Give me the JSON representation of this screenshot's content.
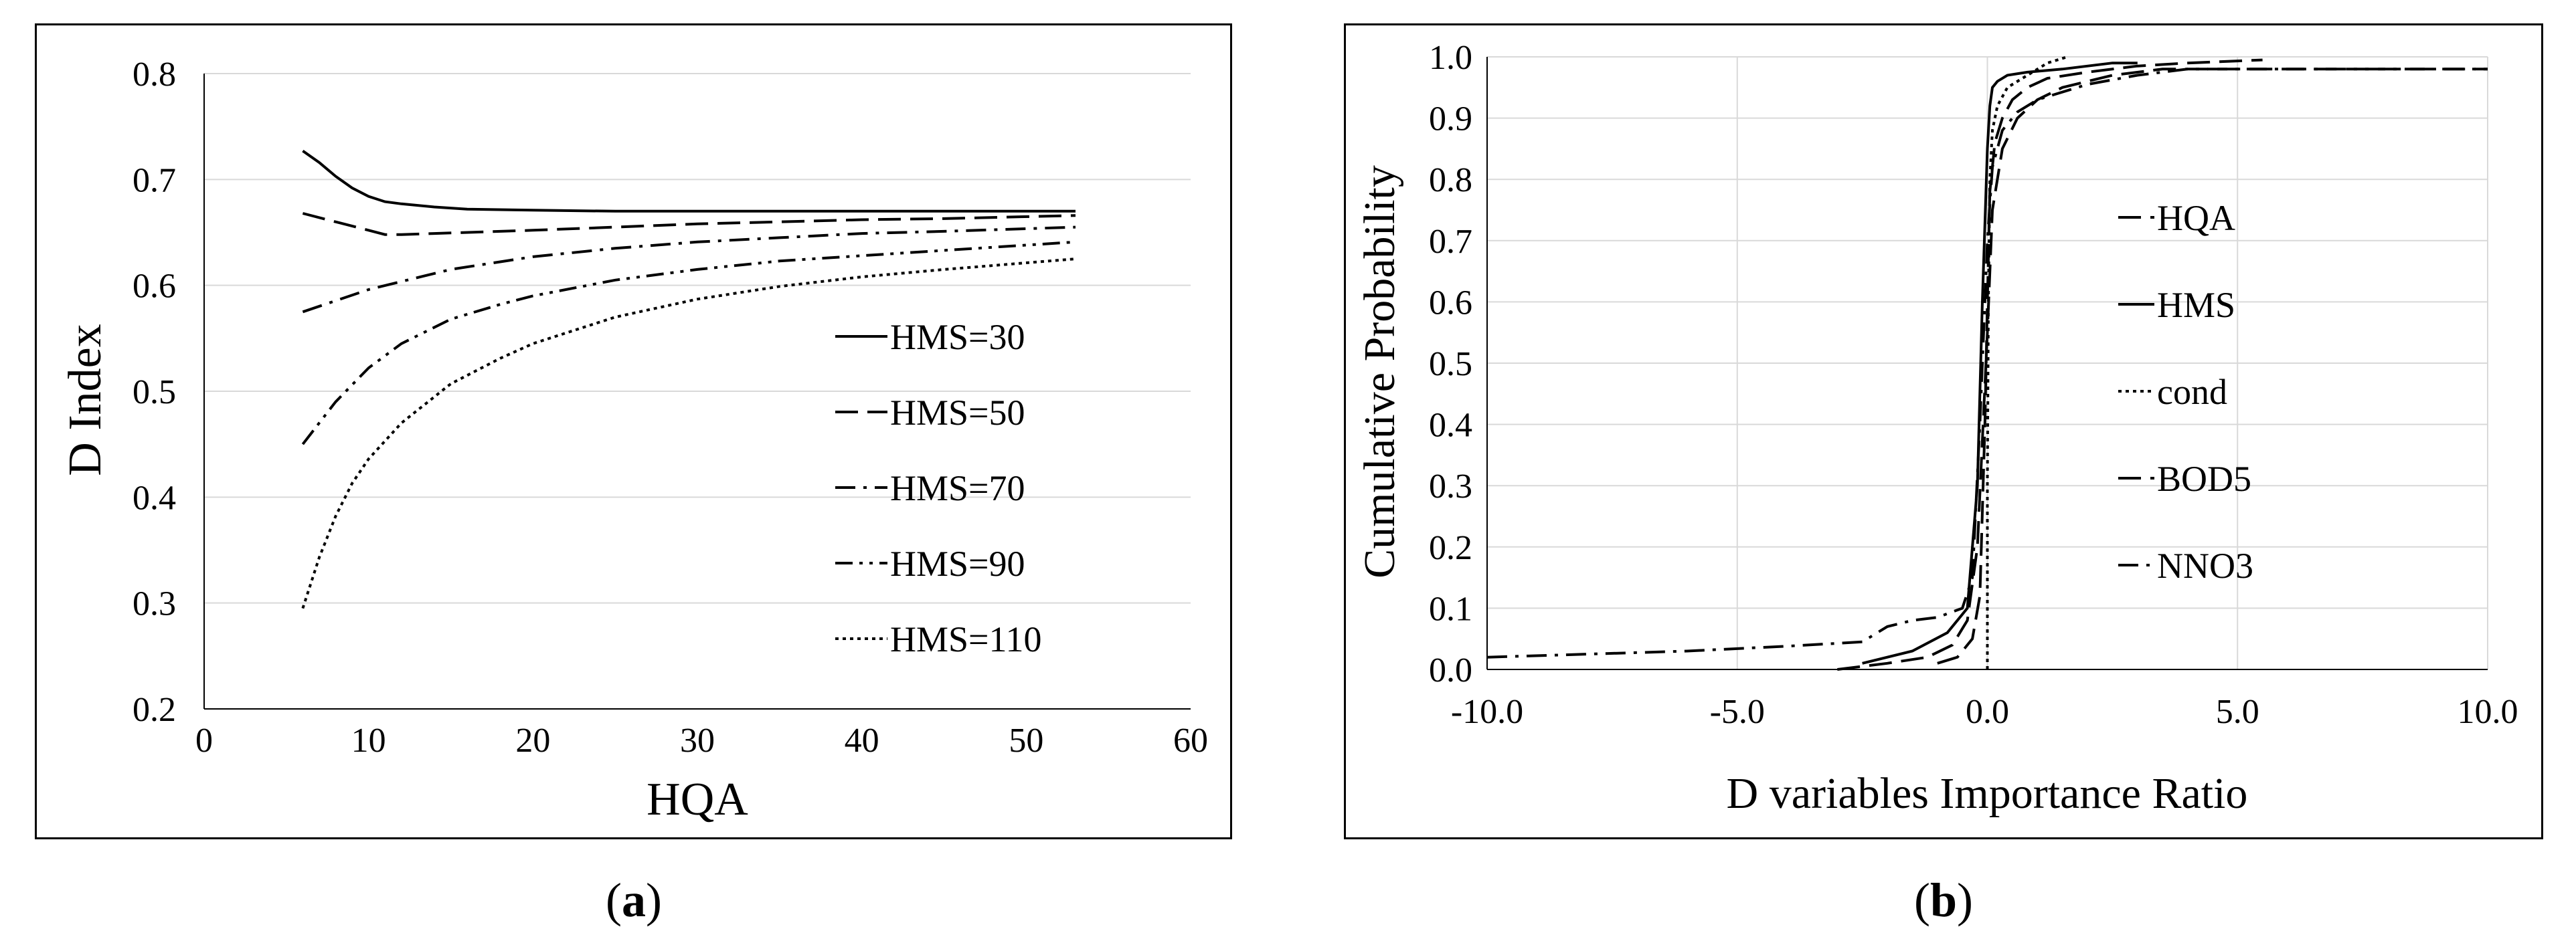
{
  "panels": {
    "a": {
      "caption_open": "(",
      "caption_letter": "a",
      "caption_close": ")"
    },
    "b": {
      "caption_open": "(",
      "caption_letter": "b",
      "caption_close": ")"
    }
  },
  "chart_data": [
    {
      "type": "line",
      "xlabel": "HQA",
      "ylabel": "D Index",
      "xlim": [
        0,
        60
      ],
      "ylim": [
        0.2,
        0.8
      ],
      "xticks": [
        "0",
        "10",
        "20",
        "30",
        "40",
        "50",
        "60"
      ],
      "yticks": [
        "0.2",
        "0.3",
        "0.4",
        "0.5",
        "0.6",
        "0.7",
        "0.8"
      ],
      "grid": "horizontal",
      "legend": "right",
      "series": [
        {
          "name": "HMS=30",
          "dash": "solid",
          "x": [
            6,
            7,
            8,
            9,
            10,
            11,
            12,
            14,
            16,
            20,
            25,
            30,
            40,
            53
          ],
          "y": [
            0.727,
            0.716,
            0.703,
            0.692,
            0.684,
            0.679,
            0.677,
            0.674,
            0.672,
            0.671,
            0.67,
            0.67,
            0.67,
            0.67
          ]
        },
        {
          "name": "HMS=50",
          "dash": "dash",
          "x": [
            6,
            8,
            10,
            11,
            12,
            14,
            20,
            25,
            30,
            35,
            40,
            45,
            53
          ],
          "y": [
            0.668,
            0.66,
            0.652,
            0.648,
            0.648,
            0.649,
            0.652,
            0.655,
            0.658,
            0.66,
            0.662,
            0.663,
            0.666
          ]
        },
        {
          "name": "HMS=70",
          "dash": "dashdot",
          "x": [
            6,
            10,
            15,
            20,
            25,
            30,
            35,
            40,
            45,
            53
          ],
          "y": [
            0.575,
            0.596,
            0.615,
            0.627,
            0.635,
            0.641,
            0.645,
            0.649,
            0.651,
            0.655
          ]
        },
        {
          "name": "HMS=90",
          "dash": "dashdotdot",
          "x": [
            6,
            8,
            10,
            12,
            15,
            18,
            20,
            25,
            30,
            35,
            40,
            45,
            53
          ],
          "y": [
            0.45,
            0.49,
            0.522,
            0.545,
            0.568,
            0.582,
            0.59,
            0.605,
            0.615,
            0.623,
            0.628,
            0.633,
            0.641
          ]
        },
        {
          "name": "HMS=110",
          "dash": "dot",
          "x": [
            6,
            7,
            8,
            9,
            10,
            12,
            15,
            18,
            20,
            25,
            30,
            35,
            40,
            45,
            53
          ],
          "y": [
            0.295,
            0.343,
            0.382,
            0.413,
            0.436,
            0.47,
            0.507,
            0.531,
            0.545,
            0.57,
            0.587,
            0.599,
            0.608,
            0.615,
            0.625
          ]
        }
      ]
    },
    {
      "type": "line",
      "xlabel": "D variables Importance Ratio",
      "ylabel": "Cumulative Probability",
      "xlim": [
        -10,
        10
      ],
      "ylim": [
        0,
        1
      ],
      "xticks": [
        "-10.0",
        "-5.0",
        "0.0",
        "5.0",
        "10.0"
      ],
      "yticks": [
        "0.0",
        "0.1",
        "0.2",
        "0.3",
        "0.4",
        "0.5",
        "0.6",
        "0.7",
        "0.8",
        "0.9",
        "1.0"
      ],
      "grid": "both",
      "legend": "right",
      "series": [
        {
          "name": "HQA",
          "dash": "dash",
          "x": [
            -1.0,
            -0.6,
            -0.3,
            -0.15,
            -0.05,
            0.0,
            0.05,
            0.15,
            0.3,
            0.5,
            0.8,
            1.2,
            2.0,
            3.0,
            4.0,
            5.5
          ],
          "y": [
            0.01,
            0.02,
            0.05,
            0.12,
            0.4,
            0.6,
            0.78,
            0.86,
            0.9,
            0.93,
            0.95,
            0.965,
            0.975,
            0.985,
            0.99,
            0.995
          ]
        },
        {
          "name": "HMS",
          "dash": "solid",
          "x": [
            -2.5,
            -1.5,
            -0.8,
            -0.4,
            -0.2,
            -0.1,
            0.0,
            0.05,
            0.1,
            0.2,
            0.4,
            0.8,
            1.5,
            2.5,
            3.0
          ],
          "y": [
            0.01,
            0.03,
            0.06,
            0.1,
            0.3,
            0.6,
            0.85,
            0.92,
            0.95,
            0.96,
            0.97,
            0.975,
            0.98,
            0.99,
            0.99
          ]
        },
        {
          "name": "cond",
          "dash": "dot",
          "x": [
            0.0,
            0.0,
            0.02,
            0.05,
            0.1,
            0.2,
            0.4,
            0.8,
            1.2,
            1.6
          ],
          "y": [
            0.0,
            0.3,
            0.6,
            0.8,
            0.88,
            0.92,
            0.95,
            0.97,
            0.99,
            1.0
          ]
        },
        {
          "name": "BOD5",
          "dash": "dash",
          "x": [
            -3.0,
            -2.0,
            -1.2,
            -0.7,
            -0.4,
            -0.2,
            0.0,
            0.1,
            0.3,
            0.6,
            1.0,
            1.5,
            2.5,
            3.5,
            10.0
          ],
          "y": [
            0.0,
            0.01,
            0.02,
            0.04,
            0.08,
            0.2,
            0.55,
            0.75,
            0.85,
            0.9,
            0.93,
            0.95,
            0.97,
            0.98,
            0.98
          ]
        },
        {
          "name": "NNO3",
          "dash": "dashdot",
          "x": [
            -10.0,
            -8.0,
            -6.0,
            -4.0,
            -2.5,
            -2.0,
            -1.5,
            -1.0,
            -0.5,
            -0.3,
            -0.15,
            0.0,
            0.1,
            0.3,
            0.6,
            1.0,
            2.0,
            3.0,
            4.0,
            6.0,
            8.0,
            10.0
          ],
          "y": [
            0.02,
            0.025,
            0.03,
            0.038,
            0.045,
            0.07,
            0.08,
            0.085,
            0.1,
            0.15,
            0.4,
            0.7,
            0.82,
            0.88,
            0.91,
            0.93,
            0.955,
            0.97,
            0.98,
            0.98,
            0.98,
            0.98
          ]
        }
      ]
    }
  ]
}
